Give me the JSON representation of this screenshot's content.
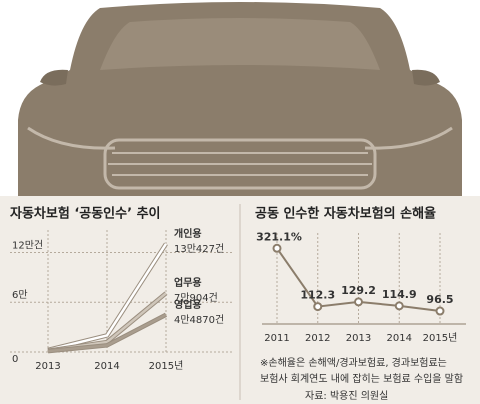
{
  "chart_data": [
    {
      "type": "line",
      "title": "자동차보험 ‘공동인수’ 추이",
      "categories": [
        "2013",
        "2014",
        "2015년"
      ],
      "series": [
        {
          "name": "개인용",
          "color": "#ffffff",
          "values": [
            2500,
            20000,
            130427
          ],
          "value_labels": [
            null,
            null,
            "13만427건"
          ]
        },
        {
          "name": "업무용",
          "color": "#cfc6ba",
          "values": [
            1500,
            12000,
            70904
          ],
          "value_labels": [
            null,
            null,
            "7만904건"
          ]
        },
        {
          "name": "영업용",
          "color": "#a99d8e",
          "values": [
            1000,
            8000,
            44870
          ],
          "value_labels": [
            null,
            null,
            "4만4870건"
          ]
        }
      ],
      "ylim": [
        0,
        135000
      ],
      "yticks": [
        0,
        {
          "value": 60000,
          "label": "6만"
        },
        {
          "value": 120000,
          "label": "12만건"
        }
      ],
      "grid": true
    },
    {
      "type": "line",
      "title": "공동 인수한 자동차보험의 손해율",
      "categories": [
        "2011",
        "2012",
        "2013",
        "2014",
        "2015년"
      ],
      "series": [
        {
          "name": "손해율",
          "color": "#8b7d6b",
          "values": [
            321.1,
            112.3,
            129.2,
            114.9,
            96.5
          ],
          "value_labels": [
            "321.1%",
            "112.3",
            "129.2",
            "114.9",
            "96.5"
          ]
        }
      ],
      "ylim": [
        50,
        340
      ],
      "grid": true,
      "notes": [
        "※손해율은 손해액/경과보험료, 경과보험료는",
        "보험사 회계연도 내에 잡히는 보험료 수입을 말함"
      ],
      "source": "자료: 박용진 의원실"
    }
  ]
}
